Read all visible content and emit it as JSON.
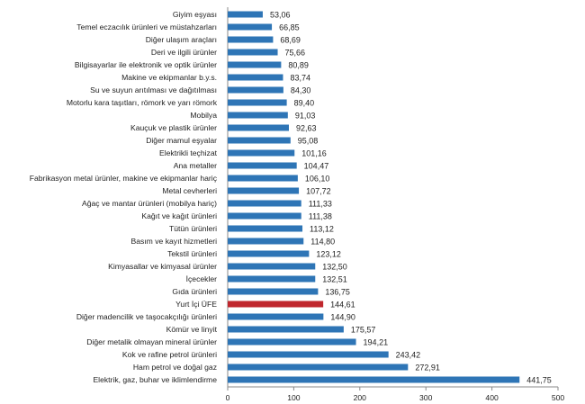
{
  "chart_data": {
    "type": "bar",
    "orientation": "horizontal",
    "title": "",
    "xlabel": "",
    "ylabel": "",
    "xlim": [
      0,
      500
    ],
    "xticks": [
      "0",
      "100",
      "200",
      "300",
      "400",
      "500"
    ],
    "grid": false,
    "colors": {
      "default": "#2E75B6",
      "highlight": "#C0272D"
    },
    "highlight_category": "Yurt İçi ÜFE",
    "categories": [
      "Giyim eşyası",
      "Temel eczacılık ürünleri ve müstahzarları",
      "Diğer ulaşım araçları",
      "Deri ve ilgili ürünler",
      "Bilgisayarlar ile elektronik ve optik ürünler",
      "Makine ve ekipmanlar b.y.s.",
      "Su ve suyun arıtılması ve dağıtılması",
      "Motorlu kara taşıtları, römork ve yarı römork",
      "Mobilya",
      "Kauçuk ve plastik ürünler",
      "Diğer mamul eşyalar",
      "Elektrikli teçhizat",
      "Ana metaller",
      "Fabrikasyon metal ürünler, makine ve ekipmanlar hariç",
      "Metal cevherleri",
      "Ağaç ve mantar ürünleri (mobilya hariç)",
      "Kağıt ve kağıt ürünleri",
      "Tütün ürünleri",
      "Basım ve kayıt hizmetleri",
      "Tekstil ürünleri",
      "Kimyasallar ve kimyasal ürünler",
      "İçecekler",
      "Gıda ürünleri",
      "Yurt İçi ÜFE",
      "Diğer madencilik ve taşocakçılığı ürünleri",
      "Kömür ve linyit",
      "Diğer metalik olmayan mineral ürünler",
      "Kok ve rafine petrol ürünleri",
      "Ham petrol ve doğal gaz",
      "Elektrik, gaz, buhar ve iklimlendirme"
    ],
    "values": [
      53.06,
      66.85,
      68.69,
      75.66,
      80.89,
      83.74,
      84.3,
      89.4,
      91.03,
      92.63,
      95.08,
      101.16,
      104.47,
      106.1,
      107.72,
      111.33,
      111.38,
      113.12,
      114.8,
      123.12,
      132.5,
      132.51,
      136.75,
      144.61,
      144.9,
      175.57,
      194.21,
      243.42,
      272.91,
      441.75
    ],
    "value_labels": [
      "53,06",
      "66,85",
      "68,69",
      "75,66",
      "80,89",
      "83,74",
      "84,30",
      "89,40",
      "91,03",
      "92,63",
      "95,08",
      "101,16",
      "104,47",
      "106,10",
      "107,72",
      "111,33",
      "111,38",
      "113,12",
      "114,80",
      "123,12",
      "132,50",
      "132,51",
      "136,75",
      "144,61",
      "144,90",
      "175,57",
      "194,21",
      "243,42",
      "272,91",
      "441,75"
    ]
  }
}
